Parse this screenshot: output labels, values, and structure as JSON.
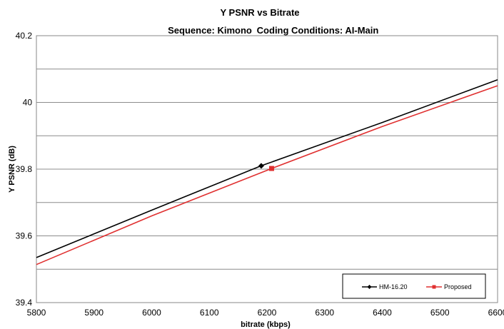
{
  "chart_data": {
    "type": "line",
    "title": "Y PSNR vs Bitrate",
    "subtitle_sequence": "Sequence: Kimono",
    "subtitle_conditions": "Coding Conditions: AI-Main",
    "xlabel": "bitrate (kbps)",
    "ylabel": "Y PSNR (dB)",
    "xlim": [
      5800,
      6600
    ],
    "ylim": [
      39.4,
      40.2
    ],
    "x_ticks": [
      "5800",
      "5900",
      "6000",
      "6100",
      "6200",
      "6300",
      "6400",
      "6500",
      "6600"
    ],
    "y_ticks": [
      "39.4",
      "39.6",
      "39.8",
      "40",
      "40.2"
    ],
    "grid": true,
    "legend_position": "bottom-right",
    "series": [
      {
        "name": "HM-16.20",
        "color": "#000000",
        "marker": "diamond",
        "x": [
          5800,
          6000,
          6190,
          6400,
          6600
        ],
        "y": [
          39.535,
          39.677,
          39.81,
          39.94,
          40.068
        ],
        "marker_x": 6190,
        "marker_y": 39.81
      },
      {
        "name": "Proposed",
        "color": "#e03030",
        "marker": "square",
        "x": [
          5800,
          6000,
          6208,
          6400,
          6600
        ],
        "y": [
          39.514,
          39.66,
          39.802,
          39.928,
          40.05
        ],
        "marker_x": 6208,
        "marker_y": 39.802
      }
    ]
  }
}
